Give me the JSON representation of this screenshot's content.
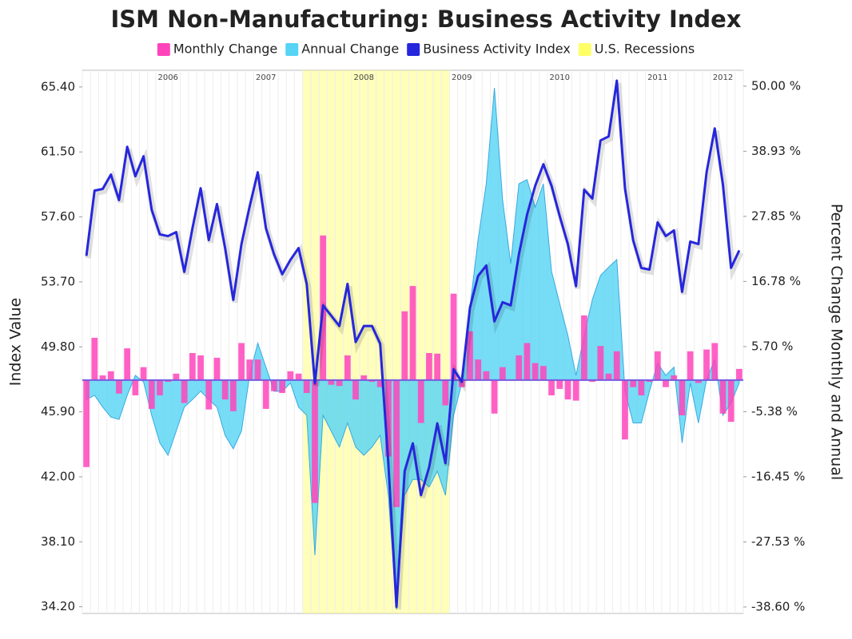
{
  "chart_data": {
    "type": "combo",
    "title": "ISM Non-Manufacturing: Business Activity Index",
    "ylabel": "Index Value",
    "y2label": "Percent Change Monthly and Annual",
    "categories": [
      null,
      null,
      null,
      null,
      null,
      null,
      null,
      null,
      null,
      null,
      "2006",
      null,
      null,
      null,
      null,
      null,
      null,
      null,
      null,
      null,
      null,
      null,
      "2007",
      null,
      null,
      null,
      null,
      null,
      null,
      null,
      null,
      null,
      null,
      null,
      "2008",
      null,
      null,
      null,
      null,
      null,
      null,
      null,
      null,
      null,
      null,
      null,
      "2009",
      null,
      null,
      null,
      null,
      null,
      null,
      null,
      null,
      null,
      null,
      null,
      "2010",
      null,
      null,
      null,
      null,
      null,
      null,
      null,
      null,
      null,
      null,
      null,
      "2011",
      null,
      null,
      null,
      null,
      null,
      null,
      null,
      "2012",
      null,
      null
    ],
    "ylim": [
      33.8,
      66.4
    ],
    "yticks": [
      {
        "value": 34.2,
        "label": "34.20"
      },
      {
        "value": 38.1,
        "label": "38.10"
      },
      {
        "value": 42.0,
        "label": "42.00"
      },
      {
        "value": 45.9,
        "label": "45.90"
      },
      {
        "value": 49.8,
        "label": "49.80"
      },
      {
        "value": 53.7,
        "label": "53.70"
      },
      {
        "value": 57.6,
        "label": "57.60"
      },
      {
        "value": 61.5,
        "label": "61.50"
      },
      {
        "value": 65.4,
        "label": "65.40"
      }
    ],
    "y2lim": [
      -39.7,
      52.7
    ],
    "y2ticks": [
      {
        "value": -38.6,
        "label": "-38.60 %"
      },
      {
        "value": -27.53,
        "label": "-27.53 %"
      },
      {
        "value": -16.45,
        "label": "-16.45 %"
      },
      {
        "value": -5.38,
        "label": "-5.38 %"
      },
      {
        "value": 5.7,
        "label": "5.70 %"
      },
      {
        "value": 16.78,
        "label": "16.78 %"
      },
      {
        "value": 27.85,
        "label": "27.85 %"
      },
      {
        "value": 38.93,
        "label": "38.93 %"
      },
      {
        "value": 50,
        "label": "50.00 %"
      }
    ],
    "recessions": [
      {
        "name": "U.S. Recessions",
        "color": "#ffff66",
        "start": 27,
        "end": 44
      }
    ],
    "series": [
      {
        "name": "Monthly Change",
        "type": "bar",
        "axis": "y2",
        "color": "#ff44bb",
        "values": [
          -14.8,
          7.2,
          0.8,
          1.5,
          -2.3,
          5.4,
          -2.6,
          2.2,
          -4.9,
          -2.6,
          -0.3,
          1.1,
          -3.9,
          4.6,
          4.2,
          -5.0,
          3.8,
          -3.3,
          -5.3,
          6.3,
          3.5,
          3.5,
          -4.9,
          -1.9,
          -2.2,
          1.5,
          1.1,
          -2.2,
          -20.9,
          24.6,
          -0.8,
          -1.0,
          4.2,
          -3.3,
          0.8,
          -0.3,
          -1.2,
          -13.0,
          -21.6,
          11.7,
          16.0,
          -7.3,
          4.6,
          4.5,
          -4.3,
          14.7,
          -1.2,
          8.3,
          3.5,
          1.5,
          -5.7,
          2.2,
          0.1,
          4.2,
          6.3,
          2.9,
          2.4,
          -2.6,
          -1.5,
          -3.3,
          -3.5,
          11.0,
          -0.3,
          5.8,
          1.1,
          4.9,
          -10.1,
          -1.2,
          -2.6,
          -0.3,
          4.9,
          -1.2,
          0.8,
          -6.0,
          4.9,
          -0.5,
          5.2,
          6.3,
          -5.7,
          -7.1,
          1.9
        ]
      },
      {
        "name": "Annual Change",
        "type": "area",
        "axis": "y2",
        "color": "#55d4f5",
        "values": [
          -3.3,
          -2.6,
          -4.6,
          -6.3,
          -6.7,
          -2.6,
          0.8,
          -0.3,
          -6.0,
          -10.7,
          -12.8,
          -8.7,
          -4.6,
          -3.3,
          -1.9,
          -3.3,
          -4.6,
          -9.4,
          -11.7,
          -8.7,
          0.8,
          6.3,
          2.2,
          -1.9,
          -1.9,
          -0.5,
          -4.6,
          -6.0,
          -29.8,
          -6.0,
          -8.7,
          -11.4,
          -7.3,
          -11.4,
          -12.8,
          -11.4,
          -9.4,
          -19.6,
          -39.0,
          -19.6,
          -16.9,
          -16.9,
          -18.2,
          -15.5,
          -19.6,
          -6.0,
          -0.5,
          12.4,
          23.9,
          33.4,
          49.7,
          30.7,
          19.8,
          33.4,
          34.1,
          29.4,
          33.4,
          18.5,
          13.0,
          7.6,
          0.8,
          7.6,
          13.7,
          17.8,
          19.2,
          20.5,
          -1.9,
          -7.3,
          -7.3,
          -1.9,
          2.9,
          0.8,
          2.2,
          -10.7,
          -0.5,
          -7.3,
          0.1,
          3.5,
          -6.0,
          -3.9,
          -0.5
        ]
      },
      {
        "name": "Business Activity Index",
        "type": "line",
        "color": "#2626dd",
        "values": [
          55.26,
          59.18,
          59.28,
          60.14,
          58.61,
          61.81,
          60.04,
          61.24,
          58.03,
          56.55,
          56.45,
          56.69,
          54.3,
          56.93,
          59.32,
          56.21,
          58.37,
          55.73,
          52.62,
          55.97,
          58.22,
          60.28,
          56.93,
          55.35,
          54.16,
          55.02,
          55.73,
          53.58,
          47.6,
          52.29,
          51.67,
          51.05,
          53.58,
          50.09,
          51.05,
          51.05,
          49.99,
          42.82,
          34.2,
          42.34,
          44.01,
          40.9,
          42.58,
          45.21,
          42.82,
          48.46,
          47.7,
          52.15,
          54.06,
          54.68,
          51.33,
          52.48,
          52.29,
          55.35,
          57.74,
          59.47,
          60.76,
          59.47,
          57.65,
          55.97,
          53.44,
          59.23,
          58.7,
          62.19,
          62.43,
          65.78,
          59.32,
          56.21,
          54.54,
          54.44,
          57.27,
          56.45,
          56.79,
          53.1,
          56.12,
          55.97,
          60.28,
          62.91,
          59.56,
          54.54,
          55.59
        ]
      }
    ]
  }
}
